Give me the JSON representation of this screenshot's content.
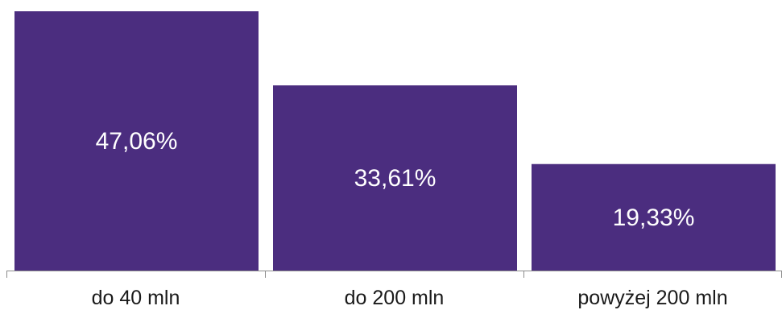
{
  "chart_data": {
    "type": "bar",
    "categories": [
      "do 40 mln",
      "do 200 mln",
      "powyżej 200 mln"
    ],
    "values": [
      47.06,
      33.61,
      19.33
    ],
    "data_labels": [
      "47,06%",
      "33,61%",
      "19,33%"
    ],
    "ylim": [
      0,
      47.06
    ],
    "grid": false,
    "bar_color": "#4b2d7f",
    "label_color": "#ffffff"
  }
}
